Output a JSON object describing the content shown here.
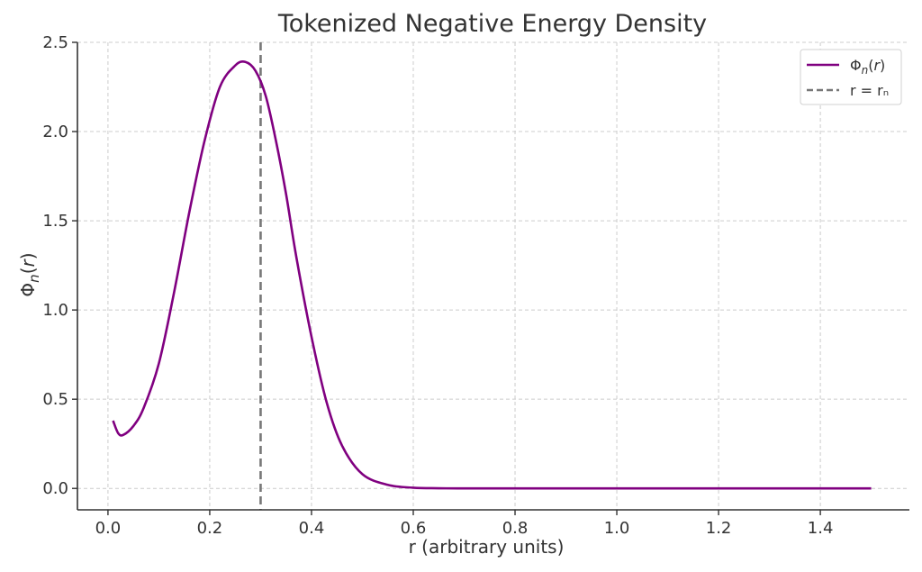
{
  "chart_data": {
    "type": "line",
    "title": "Tokenized Negative Energy Density",
    "xlabel": "r (arbitrary units)",
    "ylabel": "Φ_n(r)",
    "xlim": [
      -0.06,
      1.575
    ],
    "ylim": [
      -0.12,
      2.5
    ],
    "xticks": [
      0.0,
      0.2,
      0.4,
      0.6,
      0.8,
      1.0,
      1.2,
      1.4
    ],
    "xtick_labels": [
      "0.0",
      "0.2",
      "0.4",
      "0.6",
      "0.8",
      "1.0",
      "1.2",
      "1.4"
    ],
    "yticks": [
      0.0,
      0.5,
      1.0,
      1.5,
      2.0,
      2.5
    ],
    "ytick_labels": [
      "0.0",
      "0.5",
      "1.0",
      "1.5",
      "2.0",
      "2.5"
    ],
    "grid": true,
    "legend_position": "top-right",
    "series": [
      {
        "name": "Φn(r)",
        "color": "#800080",
        "x": [
          0.01,
          0.02,
          0.03,
          0.05,
          0.07,
          0.1,
          0.13,
          0.16,
          0.19,
          0.22,
          0.25,
          0.27,
          0.29,
          0.31,
          0.33,
          0.35,
          0.37,
          0.4,
          0.43,
          0.46,
          0.5,
          0.55,
          0.6,
          0.65,
          0.7,
          0.8,
          1.0,
          1.2,
          1.4,
          1.5
        ],
        "y": [
          0.38,
          0.31,
          0.3,
          0.35,
          0.45,
          0.7,
          1.1,
          1.55,
          1.95,
          2.25,
          2.37,
          2.39,
          2.34,
          2.2,
          1.95,
          1.65,
          1.3,
          0.85,
          0.48,
          0.24,
          0.08,
          0.02,
          0.004,
          0.001,
          0.0,
          0.0,
          0.0,
          0.0,
          0.0,
          0.0
        ]
      }
    ],
    "reference_lines": [
      {
        "name": "r = rₙ",
        "orientation": "vertical",
        "x": 0.3,
        "color": "#777777",
        "style": "dashed"
      }
    ]
  }
}
